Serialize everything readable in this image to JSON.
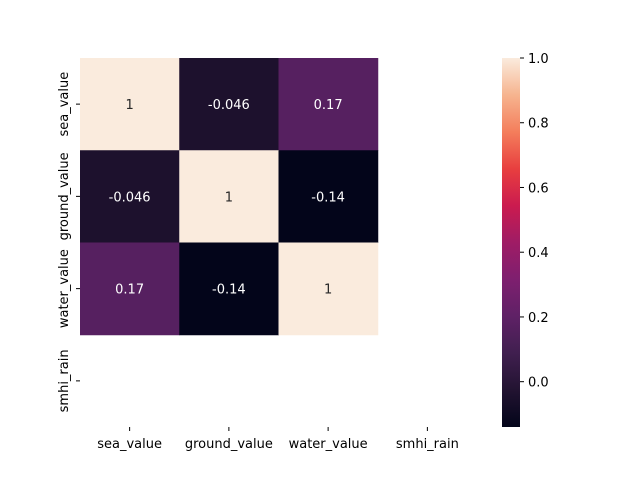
{
  "chart_data": {
    "type": "heatmap",
    "title": "",
    "xlabel": "",
    "ylabel": "",
    "x_categories": [
      "sea_value",
      "ground_value",
      "water_value",
      "smhi_rain"
    ],
    "y_categories": [
      "sea_value",
      "ground_value",
      "water_value",
      "smhi_rain"
    ],
    "values": [
      [
        1,
        -0.046,
        0.17,
        null
      ],
      [
        -0.046,
        1,
        -0.14,
        null
      ],
      [
        0.17,
        -0.14,
        1,
        null
      ],
      [
        null,
        null,
        null,
        null
      ]
    ],
    "annotations": [
      [
        "1",
        "-0.046",
        "0.17",
        ""
      ],
      [
        "-0.046",
        "1",
        "-0.14",
        ""
      ],
      [
        "0.17",
        "-0.14",
        "1",
        ""
      ],
      [
        "",
        "",
        "",
        ""
      ]
    ],
    "colorbar": {
      "colormap": "rocket",
      "vmin": -0.14,
      "vmax": 1.0,
      "ticks": [
        0.0,
        0.2,
        0.4,
        0.6,
        0.8,
        1.0
      ],
      "tick_labels": [
        "0.0",
        "0.2",
        "0.4",
        "0.6",
        "0.8",
        "1.0"
      ],
      "position": "right"
    },
    "grid": false,
    "legend": "colorbar-right"
  }
}
